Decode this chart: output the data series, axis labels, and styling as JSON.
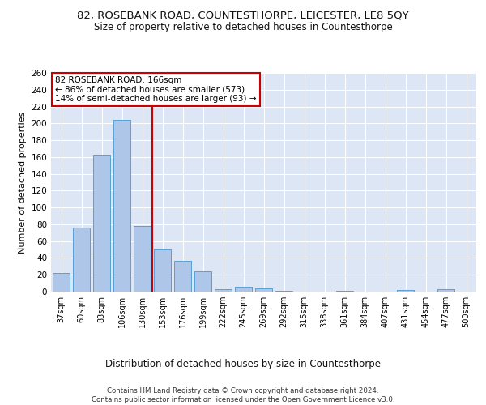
{
  "title": "82, ROSEBANK ROAD, COUNTESTHORPE, LEICESTER, LE8 5QY",
  "subtitle": "Size of property relative to detached houses in Countesthorpe",
  "xlabel": "Distribution of detached houses by size in Countesthorpe",
  "ylabel": "Number of detached properties",
  "bar_color": "#aec6e8",
  "bar_edge_color": "#5a9fd4",
  "background_color": "#dce6f5",
  "annotation_text": "82 ROSEBANK ROAD: 166sqm\n← 86% of detached houses are smaller (573)\n14% of semi-detached houses are larger (93) →",
  "vline_color": "#cc0000",
  "annotation_box_color": "#ffffff",
  "annotation_box_edge": "#cc0000",
  "footer": "Contains HM Land Registry data © Crown copyright and database right 2024.\nContains public sector information licensed under the Open Government Licence v3.0.",
  "categories": [
    "37sqm",
    "60sqm",
    "83sqm",
    "106sqm",
    "130sqm",
    "153sqm",
    "176sqm",
    "199sqm",
    "222sqm",
    "245sqm",
    "269sqm",
    "292sqm",
    "315sqm",
    "338sqm",
    "361sqm",
    "384sqm",
    "407sqm",
    "431sqm",
    "454sqm",
    "477sqm",
    "500sqm"
  ],
  "values": [
    22,
    76,
    163,
    204,
    78,
    50,
    37,
    24,
    3,
    6,
    4,
    1,
    0,
    0,
    1,
    0,
    0,
    2,
    0,
    3,
    0
  ],
  "ylim": [
    0,
    260
  ],
  "yticks": [
    0,
    20,
    40,
    60,
    80,
    100,
    120,
    140,
    160,
    180,
    200,
    220,
    240,
    260
  ]
}
